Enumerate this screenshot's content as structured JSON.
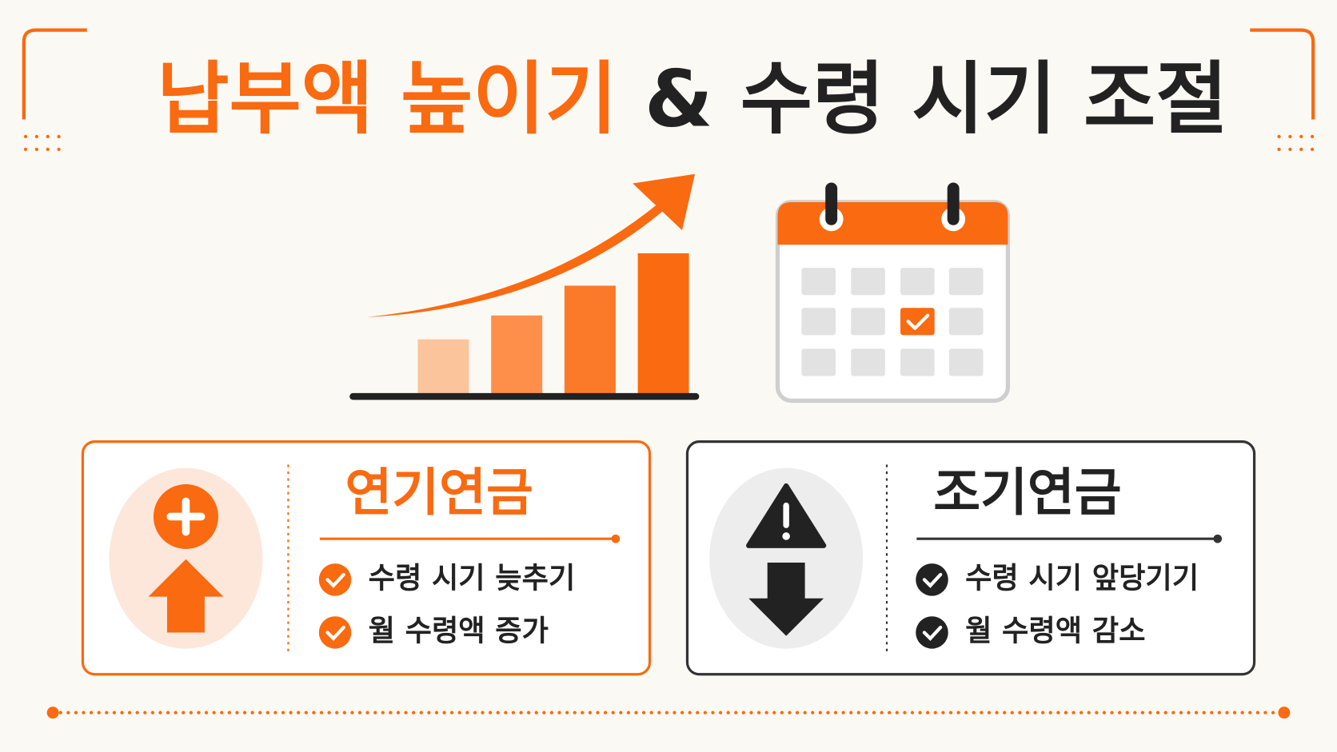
{
  "title": {
    "highlight": "납부액 높이기",
    "connector": "&",
    "rest": "수령 시기 조절"
  },
  "cards": [
    {
      "title": "연기연금",
      "items": [
        "수령 시기 늦추기",
        "월 수령액 증가"
      ]
    },
    {
      "title": "조기연금",
      "items": [
        "수령 시기 앞당기기",
        "월 수령액 감소"
      ]
    }
  ]
}
